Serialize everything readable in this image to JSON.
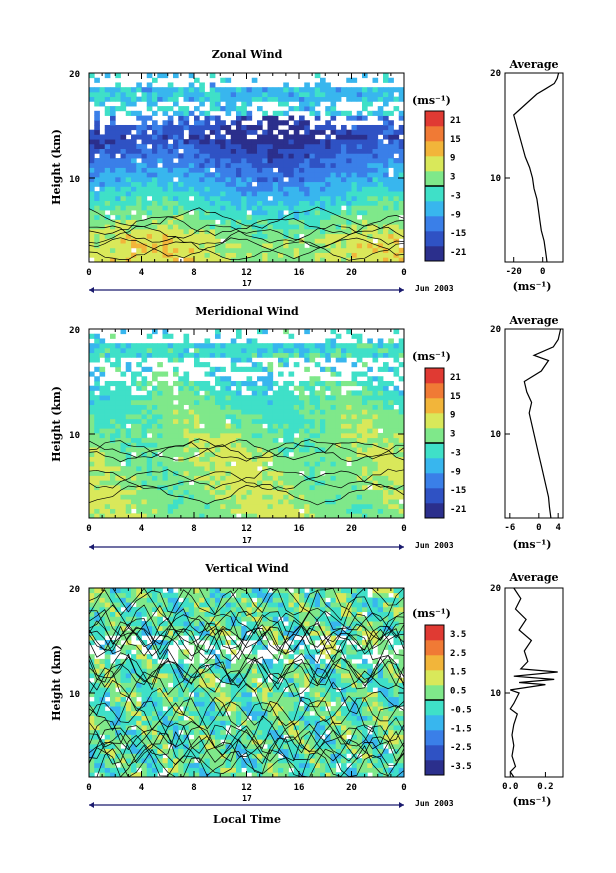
{
  "chart_data": [
    {
      "type": "heatmap",
      "title": "Zonal Wind",
      "ylabel": "Height (km)",
      "xlabel": "",
      "x_ticks": [
        "0",
        "4",
        "8",
        "12",
        "16",
        "20",
        "0"
      ],
      "y_ticks": [
        "20",
        "10"
      ],
      "xlim": [
        0,
        24
      ],
      "ylim": [
        2,
        20
      ],
      "day_label": "17",
      "date_label": "Jun 2003",
      "colorbar": {
        "unit": "(ms⁻¹)",
        "ticks": [
          "21",
          "15",
          "9",
          "3",
          "-3",
          "-9",
          "-15",
          "-21"
        ],
        "range": [
          -24,
          24
        ]
      },
      "profile": {
        "title": "Average",
        "xlabel": "(ms⁻¹)",
        "x_ticks": [
          "-20",
          "0"
        ],
        "y_ticks": [
          "20",
          "10"
        ],
        "xlim": [
          -26,
          14
        ],
        "points": [
          [
            3,
            2
          ],
          [
            2,
            3
          ],
          [
            1,
            4
          ],
          [
            -1,
            5
          ],
          [
            -2,
            6
          ],
          [
            -3,
            7
          ],
          [
            -4,
            8
          ],
          [
            -6,
            9
          ],
          [
            -7,
            10
          ],
          [
            -9,
            11
          ],
          [
            -12,
            12
          ],
          [
            -14,
            13
          ],
          [
            -16,
            14
          ],
          [
            -18,
            15
          ],
          [
            -20,
            16
          ],
          [
            -12,
            17
          ],
          [
            -4,
            18
          ],
          [
            2,
            18.5
          ],
          [
            8,
            19
          ],
          [
            10,
            19.5
          ],
          [
            11,
            20
          ]
        ]
      }
    },
    {
      "type": "heatmap",
      "title": "Meridional Wind",
      "ylabel": "Height (km)",
      "xlabel": "",
      "x_ticks": [
        "0",
        "4",
        "8",
        "12",
        "16",
        "20",
        "0"
      ],
      "y_ticks": [
        "20",
        "10"
      ],
      "xlim": [
        0,
        24
      ],
      "ylim": [
        2,
        20
      ],
      "day_label": "17",
      "date_label": "Jun 2003",
      "colorbar": {
        "unit": "(ms⁻¹)",
        "ticks": [
          "21",
          "15",
          "9",
          "3",
          "-3",
          "-9",
          "-15",
          "-21"
        ],
        "range": [
          -24,
          24
        ]
      },
      "profile": {
        "title": "Average",
        "xlabel": "(ms⁻¹)",
        "x_ticks": [
          "-6",
          "0",
          "4"
        ],
        "y_ticks": [
          "20",
          "10"
        ],
        "xlim": [
          -7,
          5
        ],
        "points": [
          [
            2.5,
            2
          ],
          [
            2.2,
            3
          ],
          [
            2,
            4
          ],
          [
            1.5,
            5
          ],
          [
            1,
            6
          ],
          [
            0.5,
            7
          ],
          [
            0,
            8
          ],
          [
            -0.5,
            9
          ],
          [
            -1,
            10
          ],
          [
            -1.5,
            11
          ],
          [
            -2,
            12
          ],
          [
            -1.5,
            13
          ],
          [
            -2.5,
            14
          ],
          [
            -3,
            15
          ],
          [
            0.5,
            16
          ],
          [
            2,
            17
          ],
          [
            -1,
            17.5
          ],
          [
            3,
            18.3
          ],
          [
            4,
            19
          ],
          [
            4.5,
            20
          ]
        ]
      }
    },
    {
      "type": "heatmap",
      "title": "Vertical Wind",
      "ylabel": "Height (km)",
      "xlabel": "Local Time",
      "x_ticks": [
        "0",
        "4",
        "8",
        "12",
        "16",
        "20",
        "0"
      ],
      "y_ticks": [
        "20",
        "10"
      ],
      "xlim": [
        0,
        24
      ],
      "ylim": [
        2,
        20
      ],
      "day_label": "17",
      "date_label": "Jun 2003",
      "colorbar": {
        "unit": "(ms⁻¹)",
        "ticks": [
          "3.5",
          "2.5",
          "1.5",
          "0.5",
          "-0.5",
          "-1.5",
          "-2.5",
          "-3.5"
        ],
        "range": [
          -4,
          4
        ]
      },
      "profile": {
        "title": "Average",
        "xlabel": "(ms⁻¹)",
        "x_ticks": [
          "0.0",
          "0.2"
        ],
        "y_ticks": [
          "20",
          "10"
        ],
        "xlim": [
          -0.03,
          0.3
        ],
        "points": [
          [
            0.02,
            2
          ],
          [
            0.0,
            2.5
          ],
          [
            0.03,
            3
          ],
          [
            0.01,
            4
          ],
          [
            0.02,
            5
          ],
          [
            0.01,
            6
          ],
          [
            0.02,
            7
          ],
          [
            0.04,
            8
          ],
          [
            0.0,
            8.5
          ],
          [
            0.02,
            9
          ],
          [
            0.05,
            10
          ],
          [
            0.0,
            10.3
          ],
          [
            0.2,
            10.8
          ],
          [
            0.05,
            11
          ],
          [
            0.25,
            11.3
          ],
          [
            0.02,
            11.6
          ],
          [
            0.27,
            12
          ],
          [
            0.06,
            12.3
          ],
          [
            0.1,
            13
          ],
          [
            0.08,
            14
          ],
          [
            0.12,
            15
          ],
          [
            0.05,
            16
          ],
          [
            0.09,
            17
          ],
          [
            0.03,
            18
          ],
          [
            0.06,
            19
          ],
          [
            0.02,
            20
          ]
        ]
      }
    }
  ]
}
